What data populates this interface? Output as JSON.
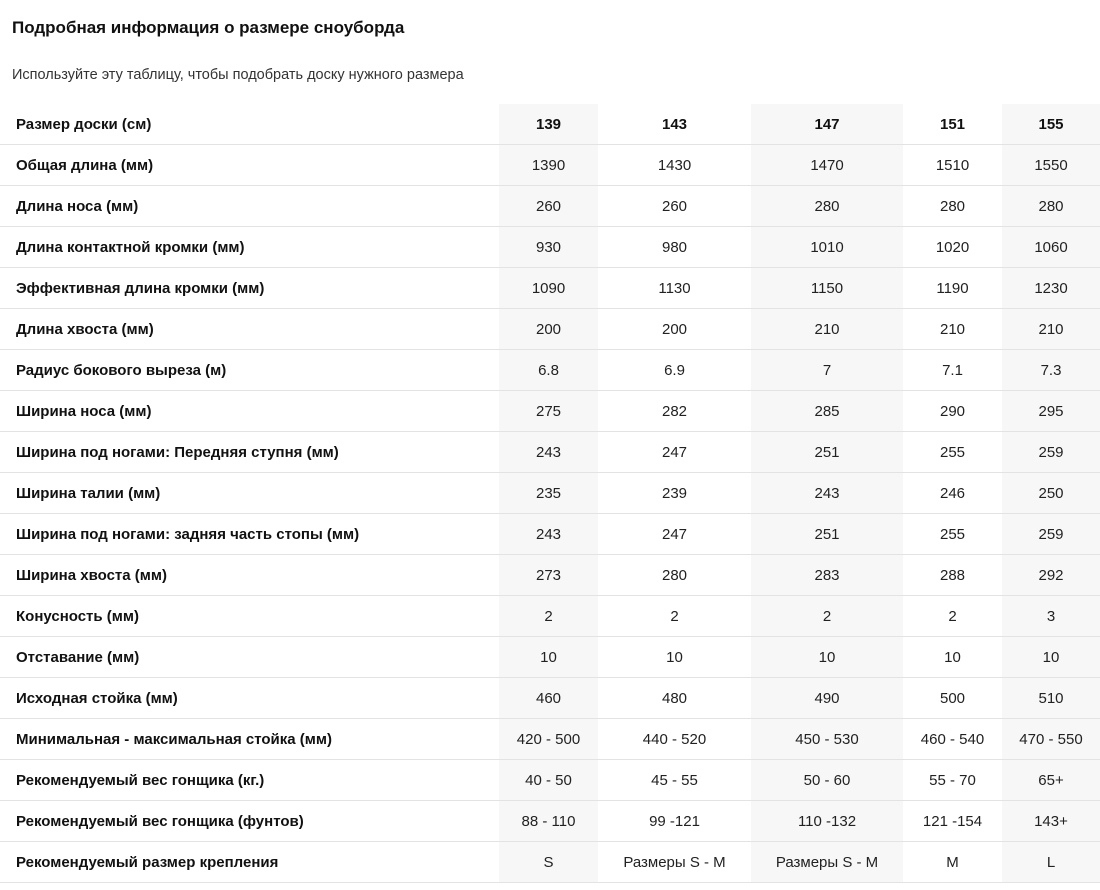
{
  "title": "Подробная информация о размере сноуборда",
  "subtitle": "Используйте эту таблицу, чтобы подобрать доску нужного размера",
  "table": {
    "header": {
      "label": "Размер доски (см)",
      "values": [
        "139",
        "143",
        "147",
        "151",
        "155"
      ]
    },
    "rows": [
      {
        "label": "Общая длина (мм)",
        "values": [
          "1390",
          "1430",
          "1470",
          "1510",
          "1550"
        ]
      },
      {
        "label": "Длина носа (мм)",
        "values": [
          "260",
          "260",
          "280",
          "280",
          "280"
        ]
      },
      {
        "label": "Длина контактной кромки (мм)",
        "values": [
          "930",
          "980",
          "1010",
          "1020",
          "1060"
        ]
      },
      {
        "label": "Эффективная длина кромки (мм)",
        "values": [
          "1090",
          "1130",
          "1150",
          "1190",
          "1230"
        ]
      },
      {
        "label": "Длина хвоста (мм)",
        "values": [
          "200",
          "200",
          "210",
          "210",
          "210"
        ]
      },
      {
        "label": "Радиус бокового выреза (м)",
        "values": [
          "6.8",
          "6.9",
          "7",
          "7.1",
          "7.3"
        ]
      },
      {
        "label": "Ширина носа (мм)",
        "values": [
          "275",
          "282",
          "285",
          "290",
          "295"
        ]
      },
      {
        "label": "Ширина под ногами: Передняя ступня (мм)",
        "values": [
          "243",
          "247",
          "251",
          "255",
          "259"
        ]
      },
      {
        "label": "Ширина талии (мм)",
        "values": [
          "235",
          "239",
          "243",
          "246",
          "250"
        ]
      },
      {
        "label": "Ширина под ногами: задняя часть стопы (мм)",
        "values": [
          "243",
          "247",
          "251",
          "255",
          "259"
        ]
      },
      {
        "label": "Ширина хвоста (мм)",
        "values": [
          "273",
          "280",
          "283",
          "288",
          "292"
        ]
      },
      {
        "label": "Конусность (мм)",
        "values": [
          "2",
          "2",
          "2",
          "2",
          "3"
        ]
      },
      {
        "label": "Отставание (мм)",
        "values": [
          "10",
          "10",
          "10",
          "10",
          "10"
        ]
      },
      {
        "label": "Исходная стойка (мм)",
        "values": [
          "460",
          "480",
          "490",
          "500",
          "510"
        ]
      },
      {
        "label": "Минимальная - максимальная стойка (мм)",
        "values": [
          "420 - 500",
          "440 - 520",
          "450 - 530",
          "460 - 540",
          "470 - 550"
        ]
      },
      {
        "label": "Рекомендуемый вес гонщика (кг.)",
        "values": [
          "40 - 50",
          "45 - 55",
          "50 - 60",
          "55 - 70",
          "65+"
        ]
      },
      {
        "label": "Рекомендуемый вес гонщика (фунтов)",
        "values": [
          "88 - 110",
          "99 -121",
          "110 -132",
          "121 -154",
          "143+"
        ]
      },
      {
        "label": "Рекомендуемый размер крепления",
        "values": [
          "S",
          "Размеры S - M",
          "Размеры S - M",
          "M",
          "L"
        ]
      }
    ]
  }
}
